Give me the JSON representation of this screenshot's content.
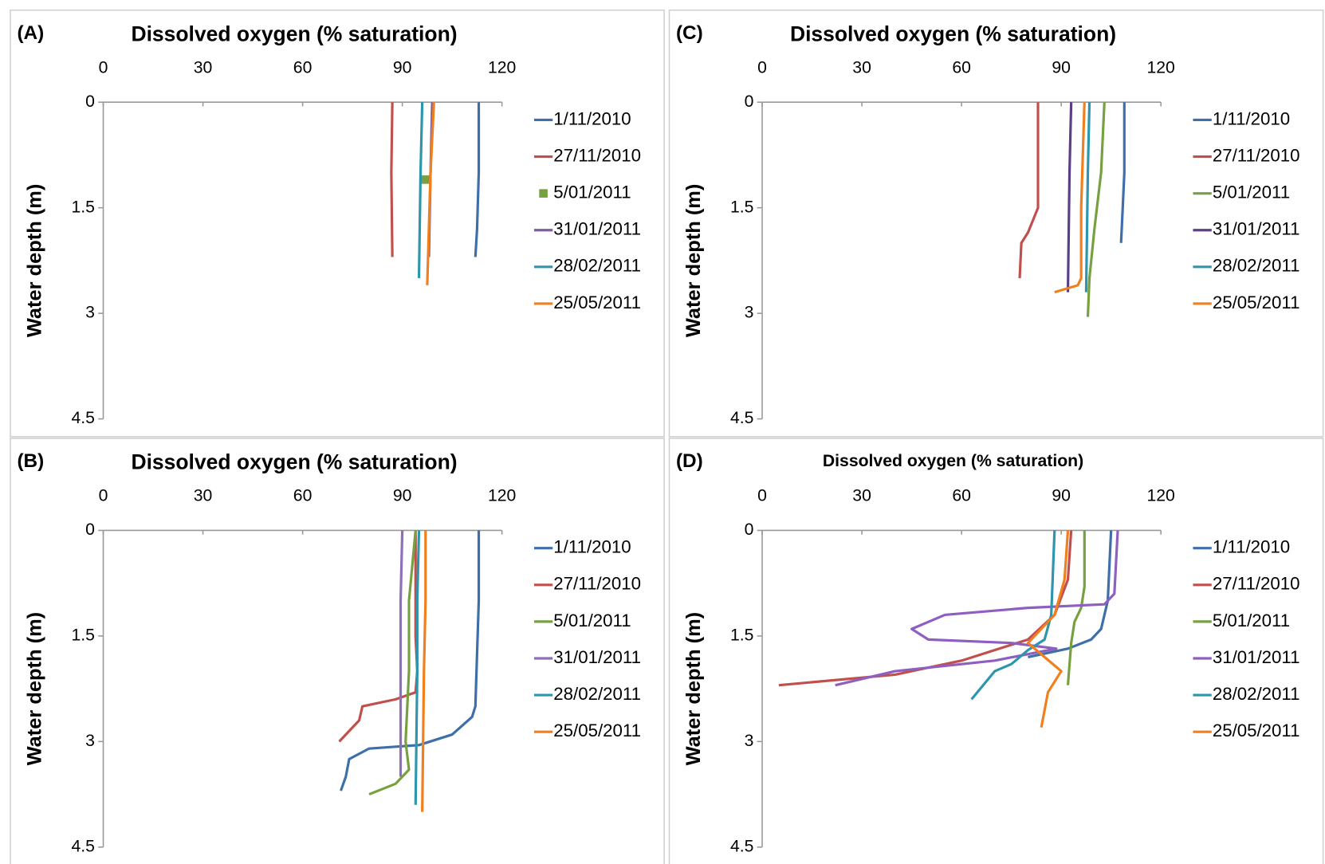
{
  "chart_data": [
    {
      "type": "line",
      "label": "(A)",
      "xlabel": "Dissolved oxygen (% saturation)",
      "ylabel": "Water depth (m)",
      "xlim": [
        0,
        120
      ],
      "xticks": [
        0,
        30,
        60,
        90,
        120
      ],
      "ylim": [
        0,
        4.5
      ],
      "yticks": [
        0,
        1.5,
        3,
        4.5
      ],
      "y_reversed": true,
      "x_axis_position": "top",
      "grid": false,
      "series": [
        {
          "name": "1/11/2010",
          "color": "#3e6fa8",
          "x": [
            113,
            113,
            112.5,
            112
          ],
          "values": [
            0,
            1,
            1.8,
            2.2
          ]
        },
        {
          "name": "27/11/2010",
          "color": "#c0504d",
          "x": [
            87,
            86.7,
            87
          ],
          "values": [
            0,
            1,
            2.2
          ]
        },
        {
          "name": "5/01/2011",
          "color": "#77a040",
          "marker": "square",
          "x": [
            97
          ],
          "values": [
            1.1
          ]
        },
        {
          "name": "31/01/2011",
          "color": "#7d5fa0",
          "x": [
            99,
            98.5,
            98
          ],
          "values": [
            0,
            1,
            2.2
          ]
        },
        {
          "name": "28/02/2011",
          "color": "#2d96ad",
          "x": [
            96,
            95.5,
            95
          ],
          "values": [
            0,
            1,
            2.5
          ]
        },
        {
          "name": "25/05/2011",
          "color": "#f07f1e",
          "x": [
            99.5,
            98.5,
            97.5
          ],
          "values": [
            0,
            1,
            2.6
          ]
        }
      ]
    },
    {
      "type": "line",
      "label": "(C)",
      "xlabel": "Dissolved oxygen (% saturation)",
      "ylabel": "Water depth (m)",
      "xlim": [
        0,
        120
      ],
      "xticks": [
        0,
        30,
        60,
        90,
        120
      ],
      "ylim": [
        0,
        4.5
      ],
      "yticks": [
        0,
        1.5,
        3,
        4.5
      ],
      "y_reversed": true,
      "x_axis_position": "top",
      "grid": false,
      "series": [
        {
          "name": "1/11/2010",
          "color": "#3e6fa8",
          "x": [
            109,
            109,
            108.5,
            108
          ],
          "values": [
            0,
            1,
            1.5,
            2
          ]
        },
        {
          "name": "27/11/2010",
          "color": "#c0504d",
          "x": [
            83,
            83,
            80,
            78,
            77.5
          ],
          "values": [
            0,
            1.5,
            1.85,
            2,
            2.5
          ]
        },
        {
          "name": "5/01/2011",
          "color": "#77a040",
          "x": [
            103,
            102,
            100,
            98.5,
            98
          ],
          "values": [
            0,
            1,
            1.8,
            2.5,
            3.05
          ]
        },
        {
          "name": "31/01/2011",
          "color": "#5b3f86",
          "x": [
            93,
            92.5,
            92
          ],
          "values": [
            0,
            1,
            2.7
          ]
        },
        {
          "name": "28/02/2011",
          "color": "#2d96ad",
          "x": [
            98.5,
            98,
            97.5
          ],
          "values": [
            0,
            1,
            2.7
          ]
        },
        {
          "name": "25/05/2011",
          "color": "#f07f1e",
          "x": [
            97,
            96,
            96,
            95,
            88
          ],
          "values": [
            0,
            1.5,
            2.5,
            2.6,
            2.7
          ]
        }
      ]
    },
    {
      "type": "line",
      "label": "(B)",
      "xlabel": "Dissolved oxygen (% saturation)",
      "ylabel": "Water depth (m)",
      "xlim": [
        0,
        120
      ],
      "xticks": [
        0,
        30,
        60,
        90,
        120
      ],
      "ylim": [
        0,
        4.5
      ],
      "yticks": [
        0,
        1.5,
        3,
        4.5
      ],
      "y_reversed": true,
      "x_axis_position": "top",
      "grid": false,
      "series": [
        {
          "name": "1/11/2010",
          "color": "#3e6fa8",
          "x": [
            113,
            113,
            112,
            111,
            105,
            95,
            80,
            74,
            73,
            71.5
          ],
          "values": [
            0,
            1,
            2.5,
            2.65,
            2.9,
            3.05,
            3.1,
            3.25,
            3.5,
            3.7
          ]
        },
        {
          "name": "27/11/2010",
          "color": "#c0504d",
          "x": [
            94,
            94,
            94.5,
            94,
            88,
            78,
            77,
            71
          ],
          "values": [
            0,
            1.5,
            2,
            2.3,
            2.4,
            2.5,
            2.7,
            3
          ]
        },
        {
          "name": "5/01/2011",
          "color": "#77a040",
          "x": [
            94,
            92,
            92,
            91,
            92,
            88,
            80
          ],
          "values": [
            0,
            1,
            2,
            3,
            3.4,
            3.6,
            3.75
          ]
        },
        {
          "name": "31/01/2011",
          "color": "#8e6fb8",
          "x": [
            90,
            89.5,
            89.5,
            89.5
          ],
          "values": [
            0,
            1,
            2,
            3.5
          ]
        },
        {
          "name": "28/02/2011",
          "color": "#2d96ad",
          "x": [
            95,
            94.5,
            94.5,
            94
          ],
          "values": [
            0,
            1,
            2,
            3.9
          ]
        },
        {
          "name": "25/05/2011",
          "color": "#f07f1e",
          "x": [
            97,
            97,
            96.5,
            96
          ],
          "values": [
            0,
            1,
            2,
            4
          ]
        }
      ]
    },
    {
      "type": "line",
      "label": "(D)",
      "xlabel": "Dissolved oxygen (% saturation)",
      "ylabel": "Water depth (m)",
      "xlim": [
        0,
        120
      ],
      "xticks": [
        0,
        30,
        60,
        90,
        120
      ],
      "ylim": [
        0,
        4.5
      ],
      "yticks": [
        0,
        1.5,
        3,
        4.5
      ],
      "y_reversed": true,
      "x_axis_position": "top",
      "grid": false,
      "series": [
        {
          "name": "1/11/2010",
          "color": "#3e6fa8",
          "x": [
            105,
            104,
            102,
            99,
            92,
            80
          ],
          "values": [
            0,
            1,
            1.4,
            1.55,
            1.68,
            1.8
          ]
        },
        {
          "name": "27/11/2010",
          "color": "#c0504d",
          "x": [
            93,
            92,
            88,
            80,
            60,
            40,
            5
          ],
          "values": [
            0,
            0.7,
            1.2,
            1.55,
            1.85,
            2.05,
            2.2
          ]
        },
        {
          "name": "5/01/2011",
          "color": "#77a040",
          "x": [
            97,
            97,
            96,
            94,
            93,
            92
          ],
          "values": [
            0,
            0.8,
            1.1,
            1.3,
            1.6,
            2.2
          ]
        },
        {
          "name": "31/01/2011",
          "color": "#8e5fc0",
          "x": [
            107,
            106,
            103,
            80,
            55,
            45,
            50,
            75,
            88.5,
            70,
            40,
            22
          ],
          "values": [
            0,
            0.9,
            1.05,
            1.1,
            1.2,
            1.4,
            1.55,
            1.6,
            1.68,
            1.85,
            2,
            2.2
          ]
        },
        {
          "name": "28/02/2011",
          "color": "#2d96ad",
          "x": [
            88,
            87,
            85,
            80,
            75,
            70,
            63
          ],
          "values": [
            0,
            1.2,
            1.55,
            1.7,
            1.9,
            2,
            2.4
          ]
        },
        {
          "name": "25/05/2011",
          "color": "#f07f1e",
          "x": [
            92,
            91,
            88,
            80,
            85,
            90,
            86,
            84
          ],
          "values": [
            0,
            0.7,
            1.2,
            1.6,
            1.8,
            2,
            2.3,
            2.8
          ]
        }
      ]
    }
  ]
}
